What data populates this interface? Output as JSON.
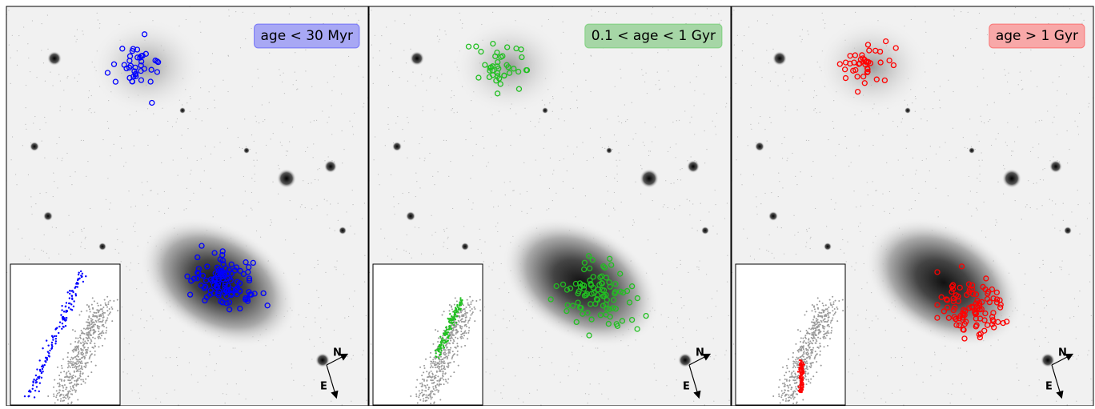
{
  "panels": [
    {
      "label": "age  < 30 Myr",
      "color": "#0000ff",
      "box_color": "#a8a8f4"
    },
    {
      "label": "0.1 <  age  < 1 Gyr",
      "color": "#22c022",
      "box_color": "#a6d6a6"
    },
    {
      "label": "age  > 1 Gyr",
      "color": "#ff0000",
      "box_color": "#f8a8a8"
    }
  ],
  "compass": {
    "north": "N",
    "east": "E"
  }
}
